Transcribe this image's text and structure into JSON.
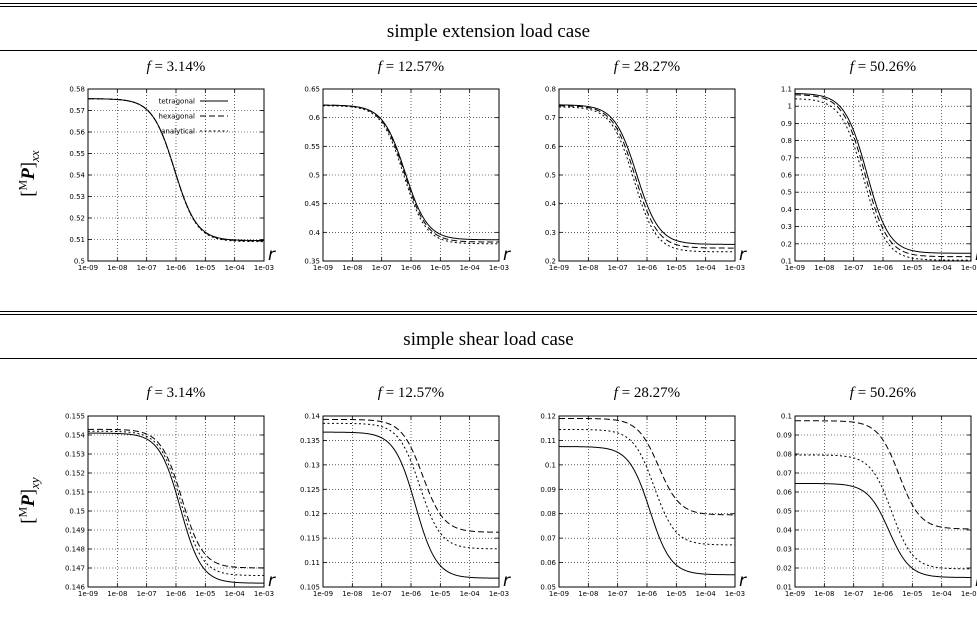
{
  "sections": [
    {
      "title": "simple extension load case"
    },
    {
      "title": "simple shear load case"
    }
  ],
  "ylabels": {
    "extension": {
      "pre": "[",
      "sup": "M",
      "bold": "P",
      "post": "]",
      "sub": "xx"
    },
    "shear": {
      "pre": "[",
      "sup": "M",
      "bold": "P",
      "post": "]",
      "sub": "xy"
    }
  },
  "legend": {
    "tetragonal": "tetragonal",
    "hexagonal": "hexagonal",
    "analytical": "analytical"
  },
  "xaxis_symbol": "r",
  "xticks": [
    "1e-09",
    "1e-08",
    "1e-07",
    "1e-06",
    "1e-05",
    "1e-04",
    "1e-03"
  ],
  "chart_data": [
    {
      "type": "line",
      "title_var": "f",
      "title_val": "= 3.14%",
      "row": "extension",
      "xscale": "log",
      "xlim": [
        1e-09,
        0.001
      ],
      "ylim": [
        0.5,
        0.58
      ],
      "grid": true,
      "legend": "top-right",
      "yticks": [
        "0.5",
        "0.51",
        "0.52",
        "0.53",
        "0.54",
        "0.55",
        "0.56",
        "0.57",
        "0.58"
      ],
      "series": [
        {
          "name": "tetragonal",
          "dash": "solid",
          "high": 0.5755,
          "low": 0.5095,
          "mid_log10": -6.05,
          "width": 0.38
        },
        {
          "name": "hexagonal",
          "dash": "dashed",
          "high": 0.5755,
          "low": 0.5093,
          "mid_log10": -6.05,
          "width": 0.38
        },
        {
          "name": "analytical",
          "dash": "dotted",
          "high": 0.5755,
          "low": 0.509,
          "mid_log10": -6.05,
          "width": 0.38
        }
      ]
    },
    {
      "type": "line",
      "title_var": "f",
      "title_val": "= 12.57%",
      "row": "extension",
      "xscale": "log",
      "xlim": [
        1e-09,
        0.001
      ],
      "ylim": [
        0.35,
        0.65
      ],
      "grid": true,
      "yticks": [
        "0.35",
        "0.4",
        "0.45",
        "0.5",
        "0.55",
        "0.6",
        "0.65"
      ],
      "series": [
        {
          "name": "tetragonal",
          "dash": "solid",
          "high": 0.622,
          "low": 0.387,
          "mid_log10": -6.2,
          "width": 0.38
        },
        {
          "name": "hexagonal",
          "dash": "dashed",
          "high": 0.622,
          "low": 0.383,
          "mid_log10": -6.22,
          "width": 0.38
        },
        {
          "name": "analytical",
          "dash": "dotted",
          "high": 0.621,
          "low": 0.38,
          "mid_log10": -6.25,
          "width": 0.38
        }
      ]
    },
    {
      "type": "line",
      "title_var": "f",
      "title_val": "= 28.27%",
      "row": "extension",
      "xscale": "log",
      "xlim": [
        1e-09,
        0.001
      ],
      "ylim": [
        0.2,
        0.8
      ],
      "grid": true,
      "yticks": [
        "0.2",
        "0.3",
        "0.4",
        "0.5",
        "0.6",
        "0.7",
        "0.8"
      ],
      "series": [
        {
          "name": "tetragonal",
          "dash": "solid",
          "high": 0.745,
          "low": 0.258,
          "mid_log10": -6.35,
          "width": 0.38
        },
        {
          "name": "hexagonal",
          "dash": "dashed",
          "high": 0.742,
          "low": 0.245,
          "mid_log10": -6.4,
          "width": 0.38
        },
        {
          "name": "analytical",
          "dash": "dotted",
          "high": 0.738,
          "low": 0.232,
          "mid_log10": -6.45,
          "width": 0.38
        }
      ]
    },
    {
      "type": "line",
      "title_var": "f",
      "title_val": "= 50.26%",
      "row": "extension",
      "xscale": "log",
      "xlim": [
        1e-09,
        0.001
      ],
      "ylim": [
        0.1,
        1.1
      ],
      "grid": true,
      "yticks": [
        "0.1",
        "0.2",
        "0.3",
        "0.4",
        "0.5",
        "0.6",
        "0.7",
        "0.8",
        "0.9",
        "1",
        "1.1"
      ],
      "series": [
        {
          "name": "tetragonal",
          "dash": "solid",
          "high": 1.075,
          "low": 0.145,
          "mid_log10": -6.55,
          "width": 0.38
        },
        {
          "name": "hexagonal",
          "dash": "dashed",
          "high": 1.068,
          "low": 0.125,
          "mid_log10": -6.6,
          "width": 0.38
        },
        {
          "name": "analytical",
          "dash": "dotted",
          "high": 1.045,
          "low": 0.105,
          "mid_log10": -6.65,
          "width": 0.38
        }
      ]
    },
    {
      "type": "line",
      "title_var": "f",
      "title_val": "= 3.14%",
      "row": "shear",
      "xscale": "log",
      "xlim": [
        1e-09,
        0.001
      ],
      "ylim": [
        0.146,
        0.155
      ],
      "grid": true,
      "yticks": [
        "0.146",
        "0.147",
        "0.148",
        "0.149",
        "0.15",
        "0.151",
        "0.152",
        "0.153",
        "0.154",
        "0.155"
      ],
      "series": [
        {
          "name": "tetragonal",
          "dash": "solid",
          "high": 0.1541,
          "low": 0.1462,
          "mid_log10": -5.85,
          "width": 0.36
        },
        {
          "name": "hexagonal",
          "dash": "dashed",
          "high": 0.1543,
          "low": 0.147,
          "mid_log10": -5.8,
          "width": 0.36
        },
        {
          "name": "analytical",
          "dash": "dotted",
          "high": 0.1542,
          "low": 0.1466,
          "mid_log10": -5.82,
          "width": 0.36
        }
      ]
    },
    {
      "type": "line",
      "title_var": "f",
      "title_val": "= 12.57%",
      "row": "shear",
      "xscale": "log",
      "xlim": [
        1e-09,
        0.001
      ],
      "ylim": [
        0.105,
        0.14
      ],
      "grid": true,
      "yticks": [
        "0.105",
        "0.11",
        "0.115",
        "0.12",
        "0.125",
        "0.13",
        "0.135",
        "0.14"
      ],
      "series": [
        {
          "name": "tetragonal",
          "dash": "solid",
          "high": 0.1367,
          "low": 0.1068,
          "mid_log10": -5.85,
          "width": 0.36
        },
        {
          "name": "hexagonal",
          "dash": "dashed",
          "high": 0.1393,
          "low": 0.1162,
          "mid_log10": -5.6,
          "width": 0.36
        },
        {
          "name": "analytical",
          "dash": "dotted",
          "high": 0.1385,
          "low": 0.1128,
          "mid_log10": -5.7,
          "width": 0.36
        }
      ]
    },
    {
      "type": "line",
      "title_var": "f",
      "title_val": "= 28.27%",
      "row": "shear",
      "xscale": "log",
      "xlim": [
        1e-09,
        0.001
      ],
      "ylim": [
        0.05,
        0.12
      ],
      "grid": true,
      "yticks": [
        "0.05",
        "0.06",
        "0.07",
        "0.08",
        "0.09",
        "0.1",
        "0.11",
        "0.12"
      ],
      "series": [
        {
          "name": "tetragonal",
          "dash": "solid",
          "high": 0.1075,
          "low": 0.055,
          "mid_log10": -5.9,
          "width": 0.36
        },
        {
          "name": "hexagonal",
          "dash": "dashed",
          "high": 0.119,
          "low": 0.0795,
          "mid_log10": -5.6,
          "width": 0.36
        },
        {
          "name": "analytical",
          "dash": "dotted",
          "high": 0.1145,
          "low": 0.0672,
          "mid_log10": -5.75,
          "width": 0.36
        }
      ]
    },
    {
      "type": "line",
      "title_var": "f",
      "title_val": "= 50.26%",
      "row": "shear",
      "xscale": "log",
      "xlim": [
        1e-09,
        0.001
      ],
      "ylim": [
        0.01,
        0.1
      ],
      "grid": true,
      "yticks": [
        "0.01",
        "0.02",
        "0.03",
        "0.04",
        "0.05",
        "0.06",
        "0.07",
        "0.08",
        "0.09",
        "0.1"
      ],
      "series": [
        {
          "name": "tetragonal",
          "dash": "solid",
          "high": 0.0645,
          "low": 0.015,
          "mid_log10": -5.8,
          "width": 0.36
        },
        {
          "name": "hexagonal",
          "dash": "dashed",
          "high": 0.0975,
          "low": 0.0405,
          "mid_log10": -5.45,
          "width": 0.36
        },
        {
          "name": "analytical",
          "dash": "dotted",
          "high": 0.0795,
          "low": 0.0195,
          "mid_log10": -5.7,
          "width": 0.36
        }
      ]
    }
  ]
}
